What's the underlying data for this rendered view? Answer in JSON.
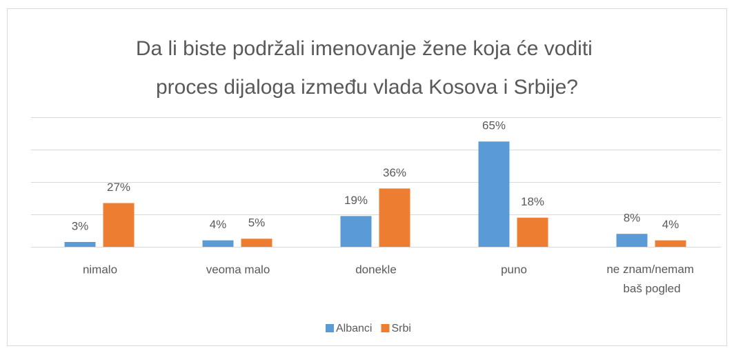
{
  "chart_data": {
    "type": "bar",
    "title": "Da li biste podržali imenovanje žene koja će voditi proces dijaloga između vlada Kosova i Srbije?",
    "categories": [
      "nimalo",
      "veoma malo",
      "donekle",
      "puno",
      "ne znam/nemam baš pogled"
    ],
    "series": [
      {
        "name": "Albanci",
        "color": "#5b9bd5",
        "values": [
          3,
          4,
          19,
          65,
          8
        ],
        "value_labels": [
          "3%",
          "4%",
          "19%",
          "65%",
          "8%"
        ]
      },
      {
        "name": "Srbi",
        "color": "#ed7d31",
        "values": [
          27,
          5,
          36,
          18,
          4
        ],
        "value_labels": [
          "27%",
          "5%",
          "36%",
          "18%",
          "4%"
        ]
      }
    ],
    "ylim": [
      0,
      80
    ],
    "yticks": [
      0,
      20,
      40,
      60,
      80
    ],
    "grid": true,
    "legend": "bottom"
  }
}
